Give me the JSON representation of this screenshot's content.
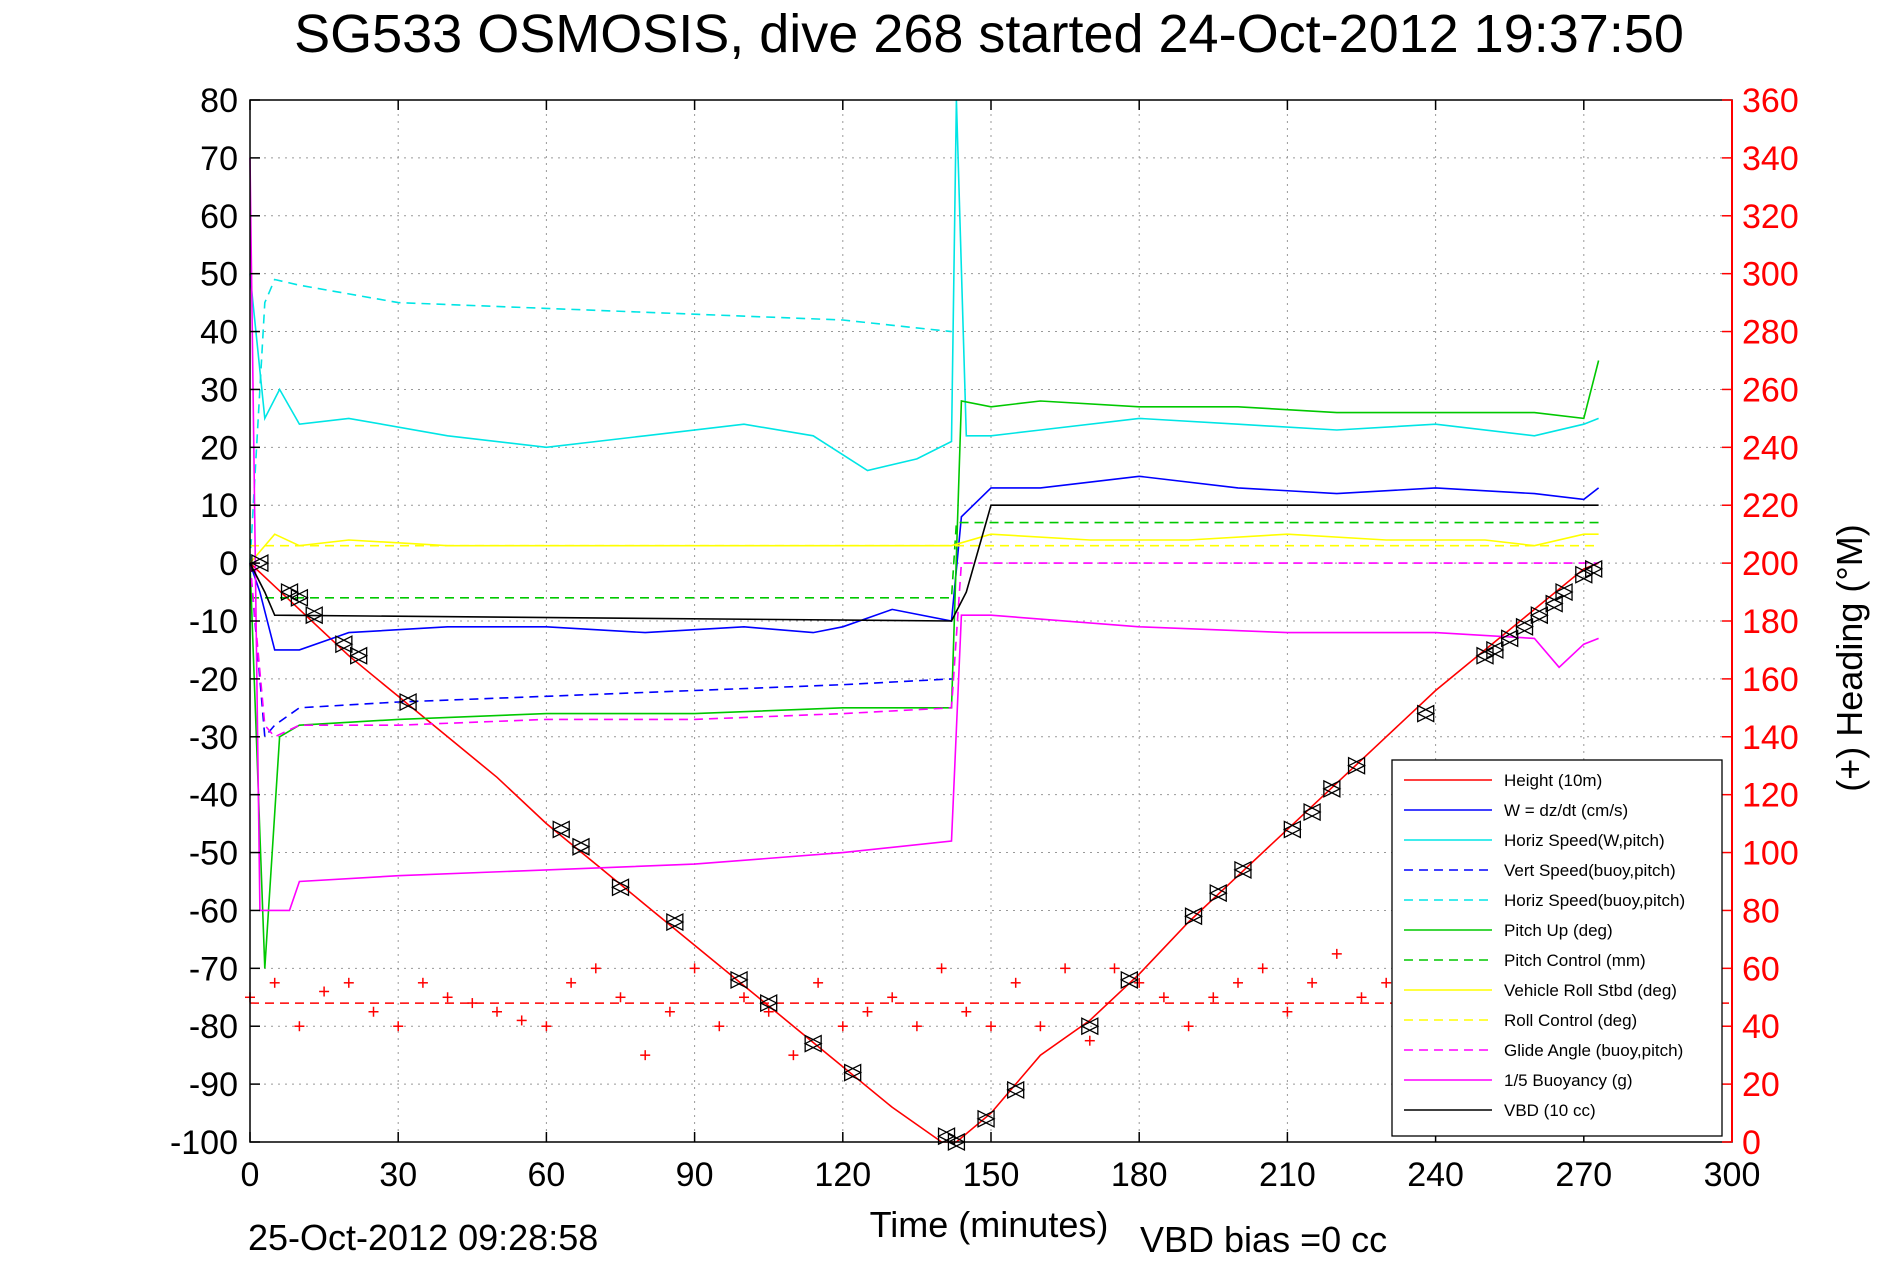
{
  "chart_data": {
    "type": "line",
    "title": "SG533 OSMOSIS, dive 268 started 24-Oct-2012 19:37:50",
    "xlabel": "Time (minutes)",
    "ylabel": "",
    "y2label": "(+) Heading (°M)",
    "xlim": [
      0,
      300
    ],
    "ylim": [
      -100,
      80
    ],
    "y2lim": [
      0,
      360
    ],
    "x_ticks": [
      "0",
      "30",
      "60",
      "90",
      "120",
      "150",
      "180",
      "210",
      "240",
      "270",
      "300"
    ],
    "y_ticks": [
      "80",
      "70",
      "60",
      "50",
      "40",
      "30",
      "20",
      "10",
      "0",
      "-10",
      "-20",
      "-30",
      "-40",
      "-50",
      "-60",
      "-70",
      "-80",
      "-90",
      "-100"
    ],
    "y2_ticks": [
      "360",
      "340",
      "320",
      "300",
      "280",
      "260",
      "240",
      "220",
      "200",
      "180",
      "160",
      "140",
      "120",
      "100",
      "80",
      "60",
      "40",
      "20",
      "0"
    ],
    "grid": true,
    "legend_position": "bottom-right",
    "timestamp": "25-Oct-2012 09:28:58",
    "vbd_bias": "VBD bias =0 cc",
    "colors": {
      "heading": "#ff0000",
      "right_axis": "#ff0000"
    },
    "series": [
      {
        "name": "Height (10m)",
        "color": "#ff0000",
        "style": "solid",
        "x": [
          0,
          5,
          10,
          20,
          30,
          40,
          50,
          60,
          70,
          80,
          90,
          100,
          110,
          120,
          130,
          140,
          143,
          150,
          160,
          170,
          180,
          190,
          200,
          210,
          220,
          230,
          240,
          250,
          260,
          270,
          273
        ],
        "y": [
          0,
          -4,
          -8,
          -16,
          -23,
          -30,
          -37,
          -45,
          -52,
          -59,
          -66,
          -73,
          -80,
          -87,
          -94,
          -100,
          -100,
          -95,
          -85,
          -79,
          -71,
          -62,
          -54,
          -46,
          -38,
          -30,
          -22,
          -15,
          -8,
          -1,
          0
        ]
      },
      {
        "name": "W = dz/dt (cm/s)",
        "color": "#0000ff",
        "style": "solid",
        "x": [
          0,
          2,
          5,
          10,
          20,
          40,
          60,
          80,
          100,
          114,
          120,
          130,
          142,
          144,
          150,
          160,
          180,
          200,
          220,
          240,
          260,
          270,
          273
        ],
        "y": [
          0,
          -5,
          -15,
          -15,
          -12,
          -11,
          -11,
          -12,
          -11,
          -12,
          -11,
          -8,
          -10,
          8,
          13,
          13,
          15,
          13,
          12,
          13,
          12,
          11,
          13
        ]
      },
      {
        "name": "Horiz Speed(W,pitch)",
        "color": "#00e5e5",
        "style": "solid",
        "x": [
          0,
          3,
          6,
          10,
          20,
          40,
          60,
          80,
          100,
          114,
          125,
          135,
          142,
          143,
          145,
          150,
          160,
          180,
          200,
          220,
          240,
          260,
          270,
          273
        ],
        "y": [
          50,
          25,
          30,
          24,
          25,
          22,
          20,
          22,
          24,
          22,
          16,
          18,
          21,
          80,
          22,
          22,
          23,
          25,
          24,
          23,
          24,
          22,
          24,
          25
        ]
      },
      {
        "name": "Vert Speed(buoy,pitch)",
        "color": "#0000ff",
        "style": "dashed",
        "x": [
          0,
          3,
          5,
          10,
          30,
          60,
          90,
          120,
          142
        ],
        "y": [
          0,
          -30,
          -28,
          -25,
          -24,
          -23,
          -22,
          -21,
          -20
        ]
      },
      {
        "name": "Horiz Speed(buoy,pitch)",
        "color": "#00e5e5",
        "style": "dashed",
        "x": [
          0,
          3,
          5,
          10,
          30,
          60,
          90,
          120,
          142
        ],
        "y": [
          0,
          45,
          49,
          48,
          45,
          44,
          43,
          42,
          40
        ]
      },
      {
        "name": "Pitch Up (deg)",
        "color": "#00c800",
        "style": "solid",
        "x": [
          0,
          3,
          6,
          10,
          30,
          60,
          90,
          120,
          142,
          144,
          150,
          160,
          180,
          200,
          220,
          240,
          260,
          270,
          273
        ],
        "y": [
          0,
          -70,
          -30,
          -28,
          -27,
          -26,
          -26,
          -25,
          -25,
          28,
          27,
          28,
          27,
          27,
          26,
          26,
          26,
          25,
          35
        ]
      },
      {
        "name": "Pitch Control (mm)",
        "color": "#00c800",
        "style": "dashed",
        "x": [
          0,
          5,
          142,
          143,
          273
        ],
        "y": [
          -6,
          -6,
          -6,
          7,
          7
        ]
      },
      {
        "name": "Vehicle Roll Stbd (deg)",
        "color": "#ffff00",
        "style": "solid",
        "x": [
          0,
          5,
          10,
          20,
          40,
          60,
          80,
          100,
          120,
          142,
          150,
          170,
          190,
          210,
          230,
          250,
          260,
          270,
          273
        ],
        "y": [
          0,
          5,
          3,
          4,
          3,
          3,
          3,
          3,
          3,
          3,
          5,
          4,
          4,
          5,
          4,
          4,
          3,
          5,
          5
        ]
      },
      {
        "name": "Roll Control (deg)",
        "color": "#ffff00",
        "style": "dashed",
        "x": [
          0,
          273
        ],
        "y": [
          3,
          3
        ]
      },
      {
        "name": "Glide Angle (buoy,pitch)",
        "color": "#ff00ff",
        "style": "dashed",
        "x": [
          0,
          3,
          5,
          10,
          30,
          60,
          90,
          120,
          142,
          144,
          273
        ],
        "y": [
          0,
          -28,
          -30,
          -28,
          -28,
          -27,
          -27,
          -26,
          -25,
          0,
          0
        ]
      },
      {
        "name": "1/5 Buoyancy (g)",
        "color": "#ff00ff",
        "style": "solid",
        "x": [
          0,
          2,
          8,
          10,
          30,
          60,
          90,
          120,
          142,
          144,
          150,
          180,
          210,
          240,
          260,
          265,
          270,
          273
        ],
        "y": [
          70,
          -60,
          -60,
          -55,
          -54,
          -53,
          -52,
          -50,
          -48,
          -9,
          -9,
          -11,
          -12,
          -12,
          -13,
          -18,
          -14,
          -13
        ]
      },
      {
        "name": "VBD (10 cc)",
        "color": "#000000",
        "style": "solid",
        "x": [
          0,
          3,
          5,
          142,
          145,
          150,
          273
        ],
        "y": [
          0,
          -5,
          -9,
          -10,
          -5,
          10,
          10
        ]
      }
    ],
    "heading": {
      "name": "(+) Heading",
      "color": "#ff0000",
      "style": "markers",
      "mean_heading_deg": 48,
      "x": [
        0,
        5,
        10,
        15,
        20,
        25,
        30,
        35,
        40,
        45,
        50,
        55,
        60,
        65,
        70,
        75,
        80,
        85,
        90,
        95,
        100,
        105,
        110,
        115,
        120,
        125,
        130,
        135,
        140,
        145,
        150,
        155,
        160,
        165,
        170,
        175,
        180,
        185,
        190,
        195,
        200,
        205,
        210,
        215,
        220,
        225,
        230,
        235,
        240,
        245,
        250,
        255,
        260,
        265,
        270,
        273
      ],
      "y": [
        50,
        55,
        40,
        52,
        55,
        45,
        40,
        55,
        50,
        48,
        45,
        42,
        40,
        55,
        60,
        50,
        30,
        45,
        60,
        40,
        50,
        45,
        30,
        55,
        40,
        45,
        50,
        40,
        60,
        45,
        40,
        55,
        40,
        60,
        35,
        60,
        55,
        50,
        40,
        50,
        55,
        60,
        45,
        55,
        65,
        50,
        55,
        60,
        50,
        55,
        40,
        50,
        45,
        50,
        40,
        45
      ]
    },
    "dive_markers": {
      "x": [
        2,
        8,
        10,
        13,
        19,
        22,
        32,
        63,
        67,
        75,
        86,
        99,
        105,
        114,
        122,
        141,
        143,
        149,
        155,
        170,
        178,
        191,
        196,
        201,
        211,
        215,
        219,
        224,
        238,
        250,
        252,
        255,
        258,
        261,
        264,
        266,
        270,
        272
      ],
      "y": [
        0,
        -5,
        -6,
        -9,
        -14,
        -16,
        -24,
        -46,
        -49,
        -56,
        -62,
        -72,
        -76,
        -83,
        -88,
        -99,
        -100,
        -96,
        -91,
        -80,
        -72,
        -61,
        -57,
        -53,
        -46,
        -43,
        -39,
        -35,
        -26,
        -16,
        -15,
        -13,
        -11,
        -9,
        -7,
        -5,
        -2,
        -1
      ]
    }
  }
}
